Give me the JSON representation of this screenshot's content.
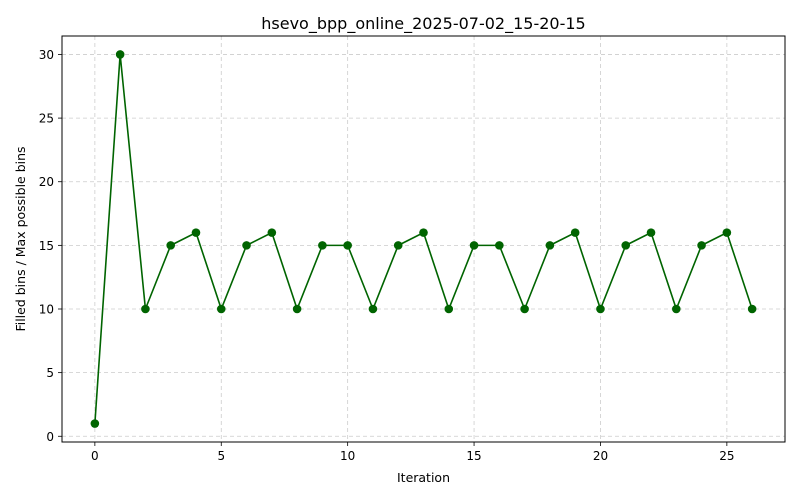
{
  "chart_data": {
    "type": "line",
    "title": "hsevo_bpp_online_2025-07-02_15-20-15",
    "xlabel": "Iteration",
    "ylabel": "Filled bins / Max possible bins",
    "xlim": [
      -1.3,
      27.3
    ],
    "ylim": [
      -0.45,
      31.45
    ],
    "xticks": [
      0,
      5,
      10,
      15,
      20,
      25
    ],
    "yticks": [
      0,
      5,
      10,
      15,
      20,
      25,
      30
    ],
    "grid": true,
    "series": [
      {
        "name": "Filled bins / Max possible bins",
        "color": "#006400",
        "x": [
          0,
          1,
          2,
          3,
          4,
          5,
          6,
          7,
          8,
          9,
          10,
          11,
          12,
          13,
          14,
          15,
          16,
          17,
          18,
          19,
          20,
          21,
          22,
          23,
          24,
          25,
          26
        ],
        "values": [
          1,
          30,
          10,
          15,
          16,
          10,
          15,
          16,
          10,
          15,
          15,
          10,
          15,
          16,
          10,
          15,
          15,
          10,
          15,
          16,
          10,
          15,
          16,
          10,
          15,
          16,
          10
        ]
      }
    ]
  }
}
